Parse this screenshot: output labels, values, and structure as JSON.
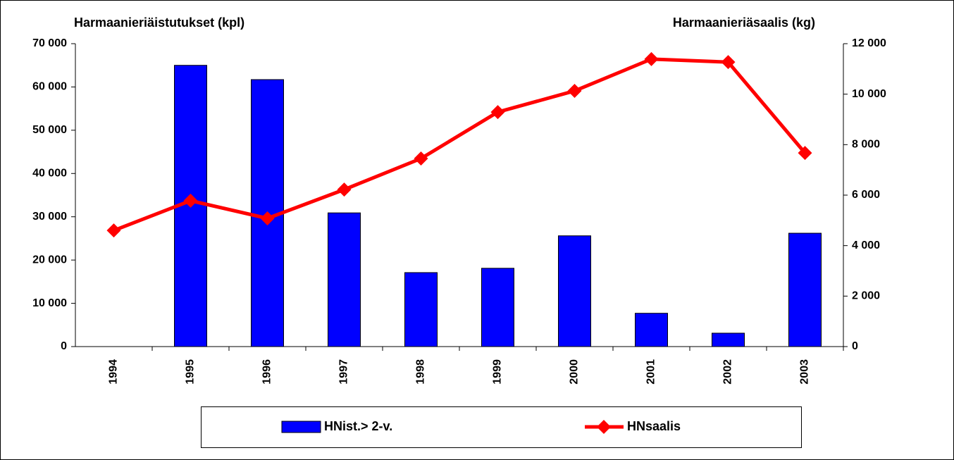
{
  "chart_data": {
    "type": "bar",
    "y_label": "Harmaanieriäistutukset (kpl)",
    "y2_label": "Harmaanieriäsaalis (kg)",
    "categories": [
      "1994",
      "1995",
      "1996",
      "1997",
      "1998",
      "1999",
      "2000",
      "2001",
      "2002",
      "2003"
    ],
    "series": [
      {
        "name": "HNist.> 2-v.",
        "type": "bar",
        "color": "#0000ff",
        "values": [
          null,
          65000,
          61700,
          30900,
          17100,
          18100,
          25600,
          7700,
          3100,
          26200
        ]
      },
      {
        "name": "HNsaalis",
        "type": "line",
        "axis": "y2",
        "color": "#ff0000",
        "values": [
          4600,
          5780,
          5080,
          6220,
          7450,
          9290,
          10130,
          11390,
          11270,
          7670
        ]
      }
    ],
    "ylim": [
      0,
      70000
    ],
    "yticks": [
      0,
      {
        "value": 10000,
        "label": "10 000"
      },
      {
        "value": 20000,
        "label": "20 000"
      },
      {
        "value": 30000,
        "label": "30 000"
      },
      {
        "value": 40000,
        "label": "40 000"
      },
      {
        "value": 50000,
        "label": "50 000"
      },
      {
        "value": 60000,
        "label": "60 000"
      },
      {
        "value": 70000,
        "label": "70 000"
      }
    ],
    "y2lim": [
      0,
      12000
    ],
    "y2ticks": [
      0,
      {
        "value": 2000,
        "label": "2 000"
      },
      {
        "value": 4000,
        "label": "4 000"
      },
      {
        "value": 6000,
        "label": "6 000"
      },
      {
        "value": 8000,
        "label": "8 000"
      },
      {
        "value": 10000,
        "label": "10 000"
      },
      {
        "value": 12000,
        "label": "12 000"
      }
    ],
    "grid": false
  }
}
